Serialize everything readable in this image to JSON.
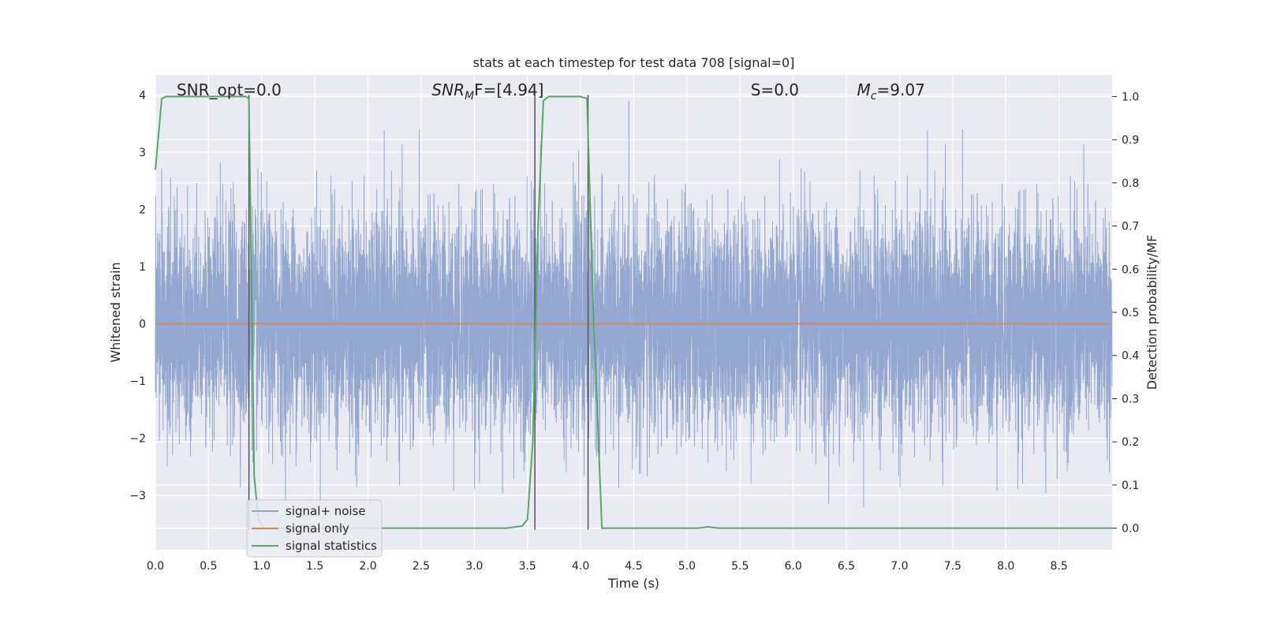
{
  "chart_data": {
    "type": "line",
    "title": "stats at each timestep for test data 708 [signal=0]",
    "xlabel": "Time (s)",
    "ylabel": "Whitened strain",
    "y2label": "Detection probability/MF",
    "xlim": [
      0.0,
      9.0
    ],
    "ylim": [
      -3.95,
      4.35
    ],
    "y2lim": [
      -0.05,
      1.05
    ],
    "xticks": [
      "0.0",
      "0.5",
      "1.0",
      "1.5",
      "2.0",
      "2.5",
      "3.0",
      "3.5",
      "4.0",
      "4.5",
      "5.0",
      "5.5",
      "6.0",
      "6.5",
      "7.0",
      "7.5",
      "8.0",
      "8.5"
    ],
    "yticks": [
      "4",
      "3",
      "2",
      "1",
      "0",
      "−1",
      "−2",
      "−3"
    ],
    "y2ticks": [
      "1.0",
      "0.9",
      "0.8",
      "0.7",
      "0.6",
      "0.5",
      "0.4",
      "0.3",
      "0.2",
      "0.1",
      "0.0"
    ],
    "grid": true,
    "legend_position": "lower-left",
    "annotations": [
      {
        "label": "SNR_opt=0.0",
        "sub": "",
        "value": "",
        "x": 0.2
      },
      {
        "label": "SNR",
        "sub": "M",
        "value": "F=[4.94]",
        "x": 2.6
      },
      {
        "label": "S",
        "sub": "",
        "value": "=0.0",
        "x": 5.6
      },
      {
        "label": "M",
        "sub": "c",
        "value": "=9.07",
        "x": 6.6
      }
    ],
    "series": [
      {
        "name": "signal+ noise",
        "color": "#8fa3cd",
        "axis": "left",
        "kind": "noise",
        "sample_rate": 1024,
        "envelope": {
          "max_peak": 3.9,
          "min_trough": -3.4
        }
      },
      {
        "name": "signal only",
        "color": "#dd8452",
        "axis": "left",
        "x": [
          0.0,
          9.0
        ],
        "y": [
          0.0,
          0.0
        ]
      },
      {
        "name": "signal statistics",
        "color": "#55a868",
        "axis": "right",
        "x": [
          0.0,
          0.06,
          0.1,
          0.85,
          0.88,
          0.93,
          0.97,
          1.02,
          3.3,
          3.45,
          3.5,
          3.55,
          3.6,
          3.65,
          3.7,
          4.0,
          4.06,
          4.12,
          4.2,
          5.1,
          5.2,
          5.3,
          9.0
        ],
        "y": [
          0.83,
          0.995,
          1.0,
          1.0,
          0.995,
          0.12,
          0.02,
          0.0,
          0.0,
          0.005,
          0.02,
          0.2,
          0.7,
          0.99,
          1.0,
          1.0,
          0.995,
          0.5,
          0.0,
          0.0,
          0.003,
          0.0,
          0.0
        ]
      }
    ],
    "vertical_lines": [
      {
        "x": 0.88,
        "y_from": -3.6,
        "y_to": 4.0
      },
      {
        "x": 3.57,
        "y_from": -3.6,
        "y_to": 4.0
      },
      {
        "x": 4.07,
        "y_from": -3.6,
        "y_to": 4.0
      }
    ],
    "colors": {
      "background": "#eaeaf2",
      "grid": "#ffffff",
      "vline": "#555555",
      "text": "#262626"
    }
  }
}
